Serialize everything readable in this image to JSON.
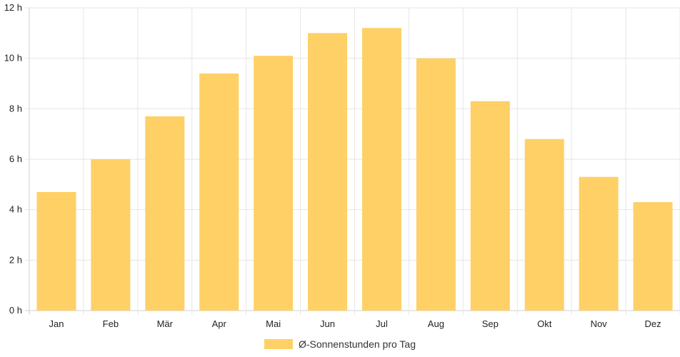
{
  "chart_data": {
    "type": "bar",
    "categories": [
      "Jan",
      "Feb",
      "Mär",
      "Apr",
      "Mai",
      "Jun",
      "Jul",
      "Aug",
      "Sep",
      "Okt",
      "Nov",
      "Dez"
    ],
    "series": [
      {
        "name": "Ø-Sonnenstunden pro Tag",
        "values": [
          4.7,
          6.0,
          7.7,
          9.4,
          10.1,
          11.0,
          11.2,
          10.0,
          8.3,
          6.8,
          5.3,
          4.3
        ],
        "color": "#fed066"
      }
    ],
    "ylim": [
      0,
      12
    ],
    "yticks": [
      0,
      2,
      4,
      6,
      8,
      10,
      12
    ],
    "ytick_suffix": " h",
    "grid": true,
    "legend": "bottom-center"
  }
}
